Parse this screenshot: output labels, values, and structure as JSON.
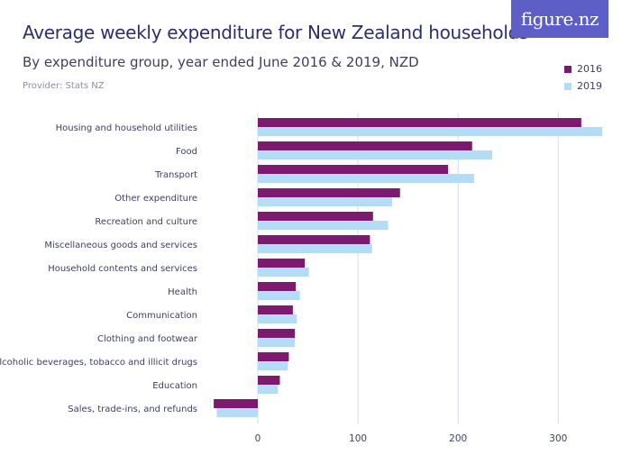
{
  "header": {
    "title": "Average weekly expenditure for New Zealand households",
    "subtitle": "By expenditure group, year ended June 2016 & 2019, NZD",
    "provider": "Provider: Stats NZ",
    "logo_text": "figure.nz"
  },
  "colors": {
    "series_2016": "#7b1a6e",
    "series_2019": "#b5dcf7",
    "grid": "#d9dbe3",
    "logo_bg": "#5d5ec6"
  },
  "chart_data": {
    "type": "bar",
    "orientation": "horizontal",
    "title": "Average weekly expenditure for New Zealand households",
    "subtitle": "By expenditure group, year ended June 2016 & 2019, NZD",
    "categories": [
      "Housing and household utilities",
      "Food",
      "Transport",
      "Other expenditure",
      "Recreation and culture",
      "Miscellaneous goods and services",
      "Household contents and services",
      "Health",
      "Communication",
      "Clothing and footwear",
      "Alcoholic beverages, tobacco and illicit drugs",
      "Education",
      "Sales, trade-ins, and refunds"
    ],
    "series": [
      {
        "name": "2016",
        "values": [
          323,
          214,
          190,
          142,
          115,
          112,
          47,
          38,
          35,
          37,
          31,
          22,
          -44
        ]
      },
      {
        "name": "2019",
        "values": [
          344,
          234,
          216,
          134,
          130,
          114,
          51,
          42,
          39,
          37,
          30,
          20,
          -41
        ]
      }
    ],
    "xticks": [
      0,
      100,
      200,
      300
    ],
    "xlim": [
      -50,
      350
    ],
    "grid": true,
    "legend": "top-right"
  }
}
